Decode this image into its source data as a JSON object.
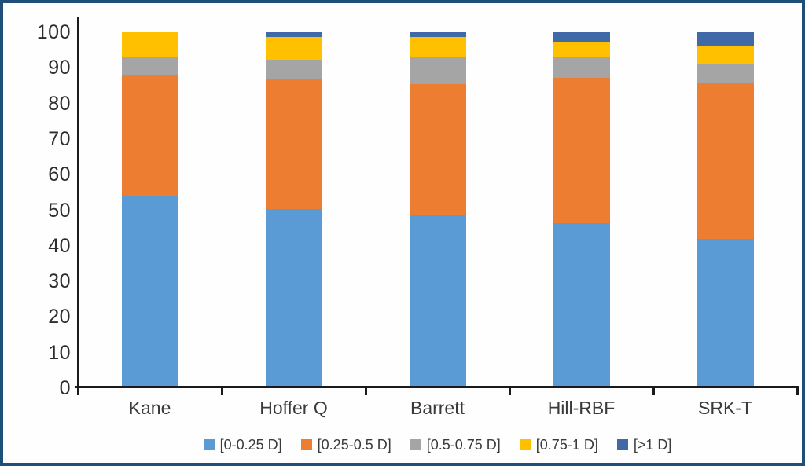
{
  "window": {
    "background_color": "#fefefe",
    "border_color": "#1F4E79"
  },
  "chart_data": {
    "type": "bar",
    "stacked": true,
    "title": "",
    "xlabel": "",
    "ylabel": "",
    "grid": false,
    "legend_position": "bottom",
    "ylim": [
      0,
      100
    ],
    "yticks": [
      0,
      10,
      20,
      30,
      40,
      50,
      60,
      70,
      80,
      90,
      100
    ],
    "categories": [
      "Kane",
      "Hoffer Q",
      "Barrett",
      "Hill-RBF",
      "SRK-T"
    ],
    "series": [
      {
        "name": "[0-0.25 D]",
        "color": "#5B9BD5",
        "values": [
          54.0,
          50.3,
          48.6,
          46.4,
          42.0
        ]
      },
      {
        "name": "[0.25-0.5 D]",
        "color": "#ED7D31",
        "values": [
          33.9,
          36.5,
          36.8,
          40.8,
          43.7
        ]
      },
      {
        "name": "[0.5-0.75 D]",
        "color": "#A5A5A5",
        "values": [
          5.0,
          5.5,
          7.7,
          6.0,
          5.5
        ]
      },
      {
        "name": "[0.75-1 D]",
        "color": "#FFC000",
        "values": [
          7.1,
          6.4,
          5.6,
          3.9,
          4.8
        ]
      },
      {
        "name": "[>1 D]",
        "color": "#4169A8",
        "values": [
          0.0,
          1.3,
          1.3,
          2.9,
          4.0
        ]
      }
    ],
    "axis_color": "#1a1a1a",
    "tick_label_color": "#2d2d2d",
    "category_label_color": "#3a3a3a"
  }
}
